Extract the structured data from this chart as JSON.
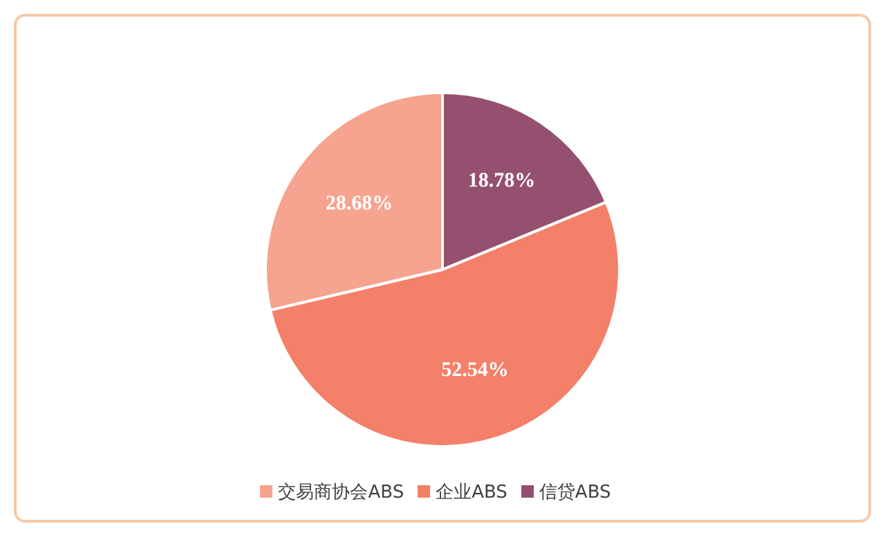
{
  "chart_data": {
    "type": "pie",
    "categories": [
      "信贷ABS",
      "企业ABS",
      "交易商协会ABS"
    ],
    "values": [
      18.78,
      52.54,
      28.68
    ],
    "colors": [
      "#95506f",
      "#f4806a",
      "#f6a390"
    ],
    "value_labels": [
      "18.78%",
      "52.54%",
      "28.68%"
    ],
    "legend": "bottom"
  }
}
